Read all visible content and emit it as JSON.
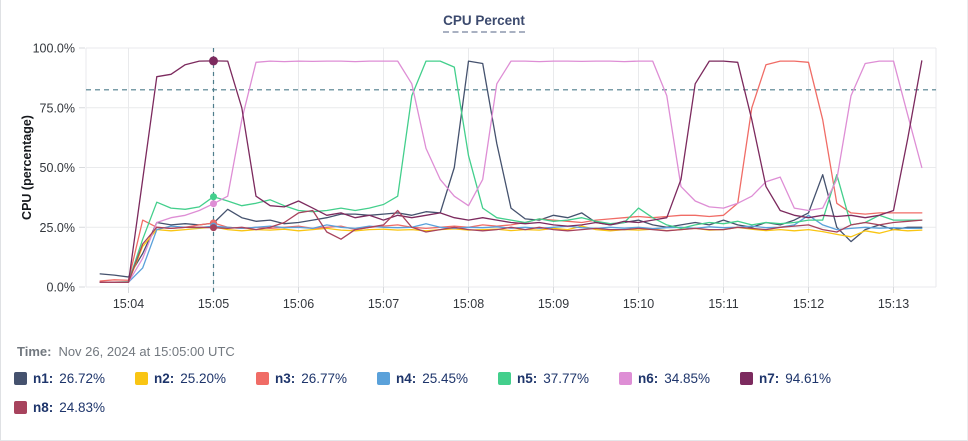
{
  "title": "CPU Percent",
  "time_row": {
    "label": "Time:",
    "value": "Nov 26, 2024 at 15:05:00 UTC"
  },
  "legend": {
    "items": [
      {
        "name": "n1",
        "label": "n1:",
        "value": "26.72%",
        "color": "#45526e"
      },
      {
        "name": "n2",
        "label": "n2:",
        "value": "25.20%",
        "color": "#f9c513"
      },
      {
        "name": "n3",
        "label": "n3:",
        "value": "26.77%",
        "color": "#f06c66"
      },
      {
        "name": "n4",
        "label": "n4:",
        "value": "25.45%",
        "color": "#5aa1da"
      },
      {
        "name": "n5",
        "label": "n5:",
        "value": "37.77%",
        "color": "#43cf8c"
      },
      {
        "name": "n6",
        "label": "n6:",
        "value": "34.85%",
        "color": "#de8ed5"
      },
      {
        "name": "n7",
        "label": "n7:",
        "value": "94.61%",
        "color": "#7c2a5e"
      },
      {
        "name": "n8",
        "label": "n8:",
        "value": "24.83%",
        "color": "#a7435d"
      }
    ]
  },
  "chart_data": {
    "type": "line",
    "title": "CPU Percent",
    "ylabel": "CPU (percentage)",
    "ylim": [
      0,
      100
    ],
    "grid": true,
    "grid_color": "#e9eaec",
    "tick_color": "#d7d9dc",
    "axis_text_color": "#33373d",
    "crosshair_color": "#4e7d8c",
    "threshold_value": 82.5,
    "crosshair_t": 300,
    "x_unit": "seconds after 15:00 UTC",
    "x_domain_seconds": [
      210,
      810
    ],
    "y_ticks": [
      {
        "v": 0,
        "label": "0.0%"
      },
      {
        "v": 25,
        "label": "25.0%"
      },
      {
        "v": 50,
        "label": "50.0%"
      },
      {
        "v": 75,
        "label": "75.0%"
      },
      {
        "v": 100,
        "label": "100.0%"
      }
    ],
    "x_ticks": [
      {
        "t": 240,
        "label": "15:04"
      },
      {
        "t": 300,
        "label": "15:05"
      },
      {
        "t": 360,
        "label": "15:06"
      },
      {
        "t": 420,
        "label": "15:07"
      },
      {
        "t": 480,
        "label": "15:08"
      },
      {
        "t": 540,
        "label": "15:09"
      },
      {
        "t": 600,
        "label": "15:10"
      },
      {
        "t": 660,
        "label": "15:11"
      },
      {
        "t": 720,
        "label": "15:12"
      },
      {
        "t": 780,
        "label": "15:13"
      }
    ],
    "x_seconds": [
      220,
      230,
      240,
      250,
      260,
      270,
      280,
      290,
      300,
      310,
      320,
      330,
      340,
      350,
      360,
      370,
      380,
      390,
      400,
      410,
      420,
      430,
      440,
      450,
      460,
      470,
      480,
      490,
      500,
      510,
      520,
      530,
      540,
      550,
      560,
      570,
      580,
      590,
      600,
      610,
      620,
      630,
      640,
      650,
      660,
      670,
      680,
      690,
      700,
      710,
      720,
      730,
      740,
      750,
      760,
      770,
      780,
      790,
      800
    ],
    "series": [
      {
        "name": "n1",
        "color": "#45526e",
        "marker_value": 26.72,
        "values": [
          5.5,
          5,
          4.2,
          14,
          27,
          26,
          26.5,
          26,
          26.72,
          32.5,
          29,
          27.5,
          28,
          26.5,
          27,
          28,
          29,
          30.5,
          30.5,
          30,
          30.5,
          31,
          30,
          31.5,
          31,
          50,
          94.5,
          93.5,
          60,
          33,
          28.5,
          28,
          30,
          29,
          31,
          27,
          26,
          27,
          28,
          26,
          25,
          26,
          27,
          26,
          28,
          26,
          25,
          27,
          26,
          28,
          31,
          47,
          25,
          19,
          24,
          26,
          24,
          25,
          25
        ]
      },
      {
        "name": "n2",
        "color": "#f9c513",
        "marker_value": 25.2,
        "values": [
          2,
          2,
          2,
          17,
          24,
          23.5,
          24,
          24.5,
          25.2,
          24,
          23.5,
          24,
          23.8,
          24.2,
          23.5,
          24,
          24.5,
          23.8,
          23.5,
          24,
          24.2,
          23.8,
          24,
          23.5,
          24,
          24.3,
          23.8,
          24,
          24.2,
          23.6,
          24,
          23.8,
          24.5,
          24,
          25.5,
          24,
          23.5,
          24,
          23.8,
          24.2,
          23.6,
          24,
          24.5,
          23.8,
          24,
          25,
          24.2,
          23.6,
          24,
          23.5,
          24,
          23.2,
          22,
          21,
          23.5,
          22.5,
          24,
          23.5,
          23.8
        ]
      },
      {
        "name": "n3",
        "color": "#f06c66",
        "marker_value": 26.77,
        "values": [
          2.5,
          3,
          2.8,
          28,
          25,
          24.5,
          25,
          26,
          26.77,
          25,
          24.5,
          25,
          24.5,
          25,
          25.5,
          24.5,
          25,
          25.5,
          24,
          25,
          25.5,
          26,
          25,
          24.5,
          25,
          25.5,
          25,
          26,
          25.5,
          26,
          27,
          28.5,
          28,
          27.5,
          27,
          28,
          28.5,
          29,
          29.5,
          29,
          29.5,
          30,
          30,
          29.5,
          30,
          35,
          75,
          93,
          94.5,
          94.5,
          94,
          70,
          35,
          31,
          30.5,
          31,
          31,
          31,
          31
        ]
      },
      {
        "name": "n4",
        "color": "#5aa1da",
        "marker_value": 25.45,
        "values": [
          2,
          2,
          2,
          8,
          24,
          25.5,
          25,
          24.8,
          25.45,
          25,
          24.5,
          25,
          25.5,
          24.8,
          25,
          24.5,
          26,
          25,
          24.5,
          25.5,
          25,
          24.8,
          25,
          26.5,
          25,
          24.5,
          25,
          24.8,
          25.2,
          24.6,
          25,
          24.5,
          25,
          25.5,
          24.8,
          24.5,
          25,
          24.6,
          25,
          24.4,
          24.8,
          25,
          24.5,
          25.2,
          24.8,
          25,
          25.5,
          24.8,
          25,
          26,
          30,
          26,
          24,
          24.5,
          25,
          24.6,
          24.8,
          24.5,
          24.5
        ]
      },
      {
        "name": "n5",
        "color": "#43cf8c",
        "marker_value": 37.77,
        "values": [
          2,
          2,
          2.2,
          20,
          35.5,
          33,
          32.5,
          33.5,
          37.77,
          36,
          34,
          35,
          36.5,
          34,
          32,
          31.5,
          32,
          33,
          32,
          33,
          34.5,
          38,
          80,
          94.5,
          94.5,
          92,
          55,
          33,
          29,
          28,
          27,
          28.5,
          27.5,
          28,
          29,
          27.5,
          26.5,
          27,
          33,
          29,
          26,
          24.5,
          26,
          27,
          26.5,
          27.5,
          26,
          27,
          26.5,
          27,
          28,
          28,
          47,
          26,
          27,
          30,
          28,
          28,
          28
        ]
      },
      {
        "name": "n6",
        "color": "#de8ed5",
        "marker_value": 34.85,
        "values": [
          2,
          2,
          2,
          12,
          27,
          29,
          30,
          32,
          34.85,
          38,
          70,
          94,
          94.5,
          94.3,
          94.5,
          94.4,
          94.5,
          94.5,
          94.3,
          94.5,
          94.5,
          94.5,
          85,
          58,
          45,
          38,
          34,
          45,
          85,
          94.5,
          94.5,
          94.3,
          94.5,
          94.5,
          94.4,
          94.5,
          94.5,
          94.3,
          94.5,
          94.5,
          80,
          42,
          36,
          33.5,
          33,
          35,
          38,
          44,
          46,
          33,
          32,
          33,
          45,
          80,
          93.5,
          94.5,
          94.5,
          72,
          50
        ]
      },
      {
        "name": "n7",
        "color": "#7c2a5e",
        "marker_value": 94.61,
        "values": [
          2,
          2,
          2,
          45,
          88,
          89,
          93,
          94.5,
          94.61,
          94.5,
          75,
          38,
          34,
          33.5,
          36,
          33,
          30,
          31,
          29,
          30,
          28,
          30,
          29,
          30,
          31,
          29,
          28,
          29,
          28,
          27,
          26.5,
          27,
          26,
          25.5,
          26,
          27,
          26,
          27.5,
          27,
          28,
          29,
          45,
          85,
          94.5,
          94.5,
          94,
          70,
          42,
          32,
          30,
          29,
          30,
          29.5,
          30,
          29,
          30,
          32,
          62,
          94.6
        ]
      },
      {
        "name": "n8",
        "color": "#a7435d",
        "marker_value": 24.83,
        "values": [
          2,
          2,
          2,
          18,
          25,
          24.5,
          25,
          25,
          24.83,
          24.5,
          25,
          24,
          25,
          27,
          31,
          32,
          23,
          20,
          24,
          25,
          26,
          32,
          25,
          23,
          24,
          25,
          24,
          23.5,
          24,
          25,
          24,
          25,
          24,
          23.5,
          24,
          24.5,
          24,
          24,
          24.5,
          24,
          23.5,
          24,
          24.5,
          24,
          24,
          25,
          24.5,
          24,
          25,
          25.5,
          26,
          24,
          23,
          26,
          27,
          26,
          27,
          27.5,
          28
        ]
      }
    ]
  }
}
